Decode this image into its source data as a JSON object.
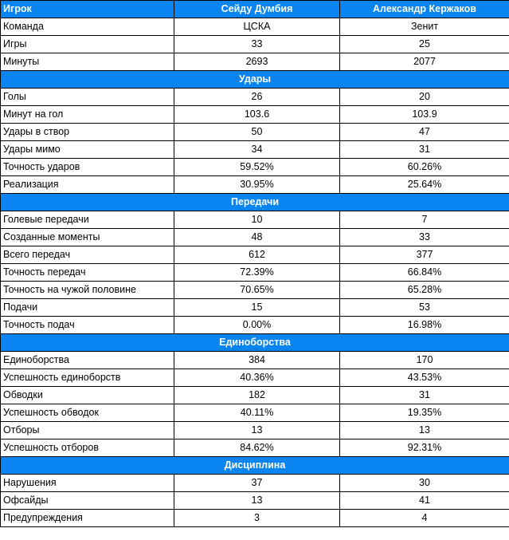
{
  "header": {
    "player_label": "Игрок",
    "player1": "Сейду Думбия",
    "player2": "Александр Кержаков"
  },
  "accent_color": "#0a84f0",
  "rows": [
    {
      "type": "row",
      "label": "Команда",
      "a": "ЦСКА",
      "b": "Зенит"
    },
    {
      "type": "row",
      "label": "Игры",
      "a": "33",
      "b": "25"
    },
    {
      "type": "row",
      "label": "Минуты",
      "a": "2693",
      "b": "2077"
    },
    {
      "type": "section",
      "label": "Удары"
    },
    {
      "type": "row",
      "label": "Голы",
      "a": "26",
      "b": "20"
    },
    {
      "type": "row",
      "label": "Минут на гол",
      "a": "103.6",
      "b": "103.9"
    },
    {
      "type": "row",
      "label": "Удары в створ",
      "a": "50",
      "b": "47"
    },
    {
      "type": "row",
      "label": "Удары мимо",
      "a": "34",
      "b": "31"
    },
    {
      "type": "row",
      "label": "Точность ударов",
      "a": "59.52%",
      "b": "60.26%"
    },
    {
      "type": "row",
      "label": "Реализация",
      "a": "30.95%",
      "b": "25.64%"
    },
    {
      "type": "section",
      "label": "Передачи"
    },
    {
      "type": "row",
      "label": "Голевые передачи",
      "a": "10",
      "b": "7"
    },
    {
      "type": "row",
      "label": "Созданные моменты",
      "a": "48",
      "b": "33"
    },
    {
      "type": "row",
      "label": "Всего передач",
      "a": "612",
      "b": "377"
    },
    {
      "type": "row",
      "label": "Точность передач",
      "a": "72.39%",
      "b": "66.84%"
    },
    {
      "type": "row",
      "label": "Точность на чужой половине",
      "a": "70.65%",
      "b": "65.28%"
    },
    {
      "type": "row",
      "label": "Подачи",
      "a": "15",
      "b": "53"
    },
    {
      "type": "row",
      "label": "Точность подач",
      "a": "0.00%",
      "b": "16.98%"
    },
    {
      "type": "section",
      "label": "Единоборства"
    },
    {
      "type": "row",
      "label": "Единоборства",
      "a": "384",
      "b": "170"
    },
    {
      "type": "row",
      "label": "Успешность единоборств",
      "a": "40.36%",
      "b": "43.53%"
    },
    {
      "type": "row",
      "label": "Обводки",
      "a": "182",
      "b": "31"
    },
    {
      "type": "row",
      "label": "Успешность обводок",
      "a": "40.11%",
      "b": "19.35%"
    },
    {
      "type": "row",
      "label": "Отборы",
      "a": "13",
      "b": "13"
    },
    {
      "type": "row",
      "label": "Успешность отборов",
      "a": "84.62%",
      "b": "92.31%"
    },
    {
      "type": "section",
      "label": "Дисциплина"
    },
    {
      "type": "row",
      "label": "Нарушения",
      "a": "37",
      "b": "30"
    },
    {
      "type": "row",
      "label": "Офсайды",
      "a": "13",
      "b": "41"
    },
    {
      "type": "row",
      "label": "Предупреждения",
      "a": "3",
      "b": "4"
    }
  ]
}
